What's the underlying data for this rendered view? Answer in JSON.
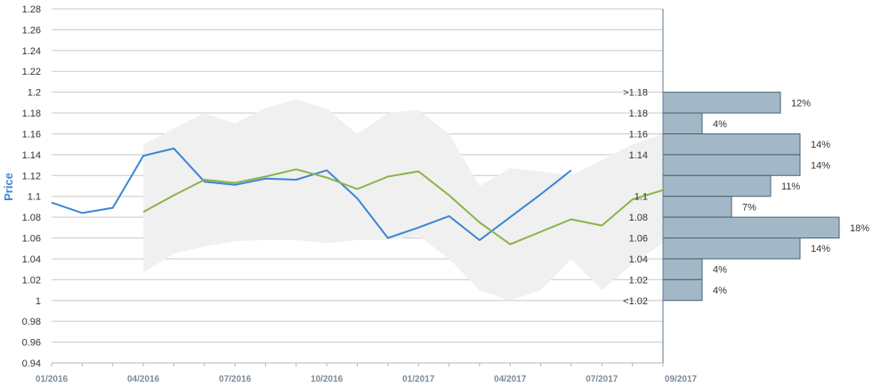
{
  "chart_data": {
    "type": "line",
    "ylabel": "Price",
    "ylim": [
      0.94,
      1.28
    ],
    "y_ticks": [
      "1.28",
      "1.26",
      "1.24",
      "1.22",
      "1.2",
      "1.18",
      "1.16",
      "1.14",
      "1.12",
      "1.1",
      "1.08",
      "1.06",
      "1.04",
      "1.02",
      "1",
      "0.98",
      "0.96",
      "0.94"
    ],
    "y_tick_values": [
      1.28,
      1.26,
      1.24,
      1.22,
      1.2,
      1.18,
      1.16,
      1.14,
      1.12,
      1.1,
      1.08,
      1.06,
      1.04,
      1.02,
      1.0,
      0.98,
      0.96,
      0.94
    ],
    "x_tick_labels": [
      "01/2016",
      "04/2016",
      "07/2016",
      "10/2016",
      "01/2017",
      "04/2017",
      "07/2017",
      "09/2017"
    ],
    "x_tick_values": [
      0,
      3,
      6,
      9,
      12,
      15,
      18,
      20
    ],
    "grid": true,
    "colors": {
      "actual": "#3a86d6",
      "forecast": "#8cb24a",
      "band": "#f0f0f0",
      "hist_fill": "#a3b8c6",
      "hist_stroke": "#4a6274",
      "grid": "#c8c8c8",
      "ylabel": "#3a86d6"
    },
    "series": [
      {
        "key": "actual",
        "x": [
          0,
          1,
          2,
          3,
          4,
          5,
          6,
          7,
          8,
          9,
          10,
          11,
          12,
          13,
          14,
          15,
          16,
          17
        ],
        "values": [
          1.094,
          1.084,
          1.089,
          1.139,
          1.146,
          1.114,
          1.111,
          1.117,
          1.116,
          1.125,
          1.098,
          1.06,
          1.07,
          1.081,
          1.058,
          1.08,
          1.102,
          1.125
        ]
      },
      {
        "key": "forecast",
        "x": [
          3,
          4,
          5,
          6,
          7,
          8,
          9,
          10,
          11,
          12,
          13,
          14,
          15,
          16,
          17,
          18,
          19,
          20
        ],
        "values": [
          1.085,
          1.101,
          1.116,
          1.113,
          1.119,
          1.126,
          1.118,
          1.107,
          1.119,
          1.124,
          1.101,
          1.075,
          1.054,
          1.066,
          1.078,
          1.072,
          1.097,
          1.106
        ]
      }
    ],
    "band": {
      "x": [
        3,
        4,
        5,
        6,
        7,
        8,
        9,
        10,
        11,
        12,
        13,
        14,
        15,
        16,
        17,
        18,
        19,
        20
      ],
      "upper": [
        1.15,
        1.165,
        1.18,
        1.17,
        1.185,
        1.193,
        1.184,
        1.16,
        1.18,
        1.183,
        1.16,
        1.11,
        1.127,
        1.124,
        1.12,
        1.135,
        1.15,
        1.16
      ],
      "lower": [
        1.027,
        1.045,
        1.052,
        1.057,
        1.058,
        1.058,
        1.055,
        1.058,
        1.058,
        1.062,
        1.04,
        1.01,
        1.0,
        1.01,
        1.04,
        1.01,
        1.035,
        1.055
      ]
    },
    "histogram": {
      "categories": [
        ">1.18",
        "1.18",
        "1.16",
        "1.14",
        "1.1",
        "1.08",
        "1.06",
        "1.04",
        "1.02",
        "<1.02"
      ],
      "bin_centers": [
        1.19,
        1.17,
        1.15,
        1.13,
        1.11,
        1.09,
        1.07,
        1.05,
        1.03,
        1.01
      ],
      "values": [
        12,
        4,
        14,
        14,
        11,
        7,
        18,
        14,
        4,
        4
      ],
      "labels": [
        "12%",
        "4%",
        "14%",
        "14%",
        "11%",
        "7%",
        "18%",
        "14%",
        "4%",
        "4%"
      ],
      "axis_tick_labels": [
        ">1.18",
        "1.18",
        "1.16",
        "1.14",
        "1.1",
        "1.08",
        "1.06",
        "1.04",
        "1.02",
        "<1.02"
      ],
      "axis_tick_values": [
        1.2,
        1.18,
        1.16,
        1.14,
        1.1,
        1.08,
        1.06,
        1.04,
        1.02,
        1.0
      ]
    }
  }
}
